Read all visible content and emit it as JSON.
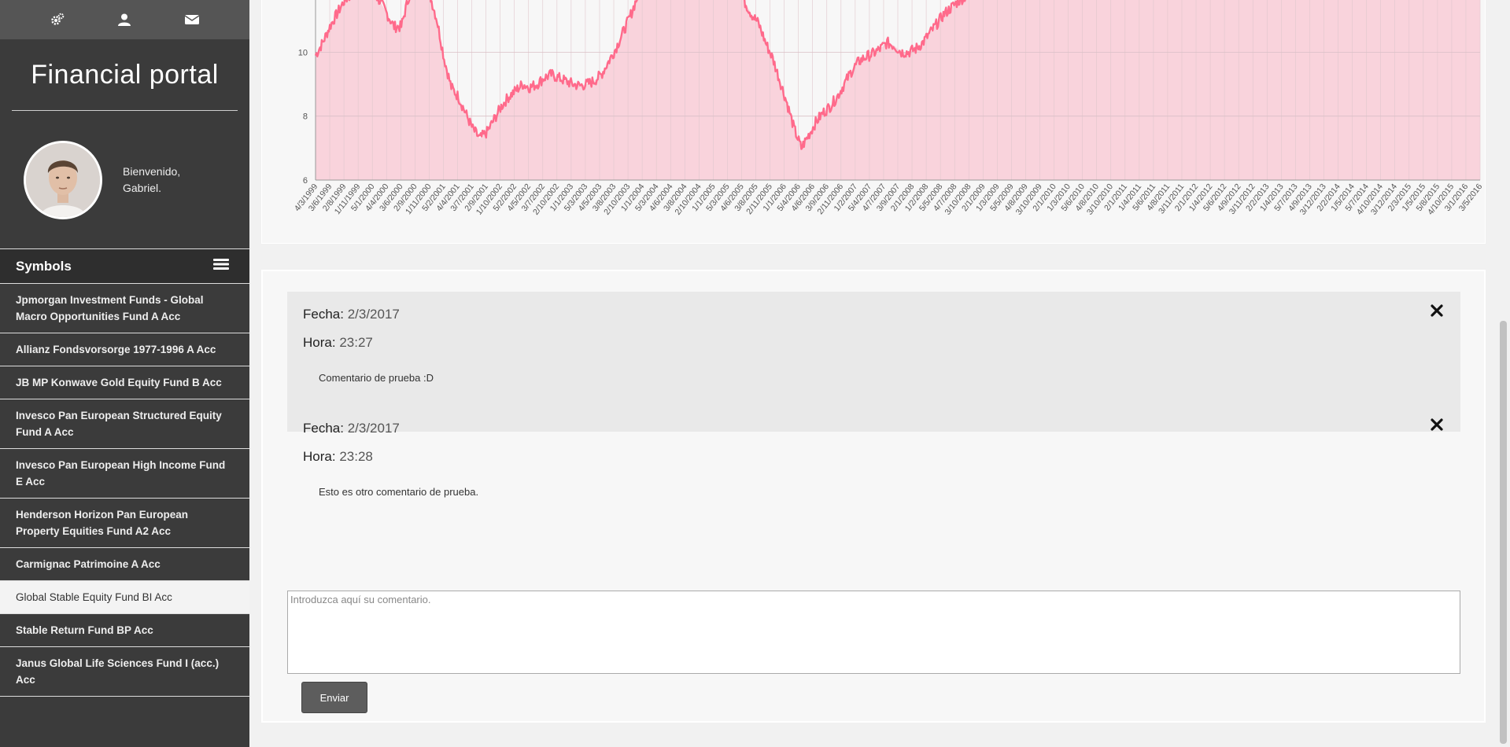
{
  "sidebar": {
    "top_icons": [
      "cogs-icon",
      "user-icon",
      "envelope-icon"
    ],
    "brand": "Financial portal",
    "greeting_line1": "Bienvenido,",
    "greeting_line2": "Gabriel.",
    "symbols_header": "Symbols",
    "symbols": [
      {
        "label": "Jpmorgan Investment Funds - Global Macro Opportunities Fund A Acc",
        "active": false
      },
      {
        "label": "Allianz Fondsvorsorge 1977-1996 A Acc",
        "active": false
      },
      {
        "label": "JB MP Konwave Gold Equity Fund B Acc",
        "active": false
      },
      {
        "label": "Invesco Pan European Structured Equity Fund A Acc",
        "active": false
      },
      {
        "label": "Invesco Pan European High Income Fund E Acc",
        "active": false
      },
      {
        "label": "Henderson Horizon Pan European Property Equities Fund A2 Acc",
        "active": false
      },
      {
        "label": "Carmignac Patrimoine A Acc",
        "active": false
      },
      {
        "label": "Global Stable Equity Fund BI Acc",
        "active": true
      },
      {
        "label": "Stable Return Fund BP Acc",
        "active": false
      },
      {
        "label": "Janus Global Life Sciences Fund I (acc.) Acc",
        "active": false
      }
    ]
  },
  "chart_data": {
    "type": "area",
    "title": "",
    "xlabel": "",
    "ylabel": "",
    "y_ticks": [
      6,
      8,
      10
    ],
    "ylim": [
      6,
      12.1
    ],
    "grid": true,
    "color": "#ff6a8b",
    "fill": "#f9d3dc",
    "x_tick_labels": [
      "4/3/1999",
      "3/6/1999",
      "2/8/1999",
      "1/11/1999",
      "5/1/2000",
      "4/4/2000",
      "3/6/2000",
      "2/9/2000",
      "1/11/2000",
      "5/2/2001",
      "4/4/2001",
      "3/7/2001",
      "2/9/2001",
      "1/10/2002",
      "5/2/2002",
      "4/5/2002",
      "3/7/2002",
      "2/10/2002",
      "1/1/2003",
      "5/3/2003",
      "4/5/2003",
      "3/8/2003",
      "2/10/2003",
      "1/1/2004",
      "5/3/2004",
      "4/6/2004",
      "3/8/2004",
      "2/10/2004",
      "1/1/2005",
      "5/3/2005",
      "4/6/2005",
      "3/8/2005",
      "2/11/2005",
      "1/1/2006",
      "5/4/2006",
      "4/6/2006",
      "3/9/2006",
      "2/11/2006",
      "1/2/2007",
      "5/4/2007",
      "4/7/2007",
      "3/9/2007",
      "2/1/2008",
      "1/2/2008",
      "5/5/2008",
      "4/7/2008",
      "3/10/2008",
      "2/1/2009",
      "1/3/2009",
      "5/5/2009",
      "4/8/2009",
      "3/10/2009",
      "2/1/2010",
      "1/3/2010",
      "5/6/2010",
      "4/8/2010",
      "3/10/2010",
      "2/1/2011",
      "1/4/2011",
      "5/6/2011",
      "4/8/2011",
      "3/11/2011",
      "2/1/2012",
      "1/4/2012",
      "5/6/2012",
      "4/9/2012",
      "3/11/2012",
      "2/2/2013",
      "1/4/2013",
      "5/7/2013",
      "4/9/2013",
      "3/12/2013",
      "2/2/2014",
      "1/5/2014",
      "5/7/2014",
      "4/10/2014",
      "3/12/2014",
      "2/3/2015",
      "1/5/2015",
      "5/8/2015",
      "4/10/2015",
      "3/1/2016",
      "3/5/2016"
    ],
    "series": [
      {
        "values": [
          9.9,
          10.3,
          10.8,
          11.2,
          11.6,
          11.8,
          11.9,
          11.95,
          11.9,
          11.6,
          11.2,
          10.8,
          10.8,
          11.7,
          12.05,
          12.1,
          11.8,
          11.0,
          9.8,
          8.9,
          8.6,
          8.1,
          7.6,
          7.3,
          7.5,
          7.9,
          8.3,
          8.6,
          8.8,
          9.0,
          8.9,
          9.0,
          9.2,
          9.3,
          9.2,
          9.1,
          9.0,
          8.95,
          9.0,
          9.1,
          9.3,
          9.7,
          10.1,
          10.6,
          11.1,
          11.7,
          12.1,
          12.1,
          12.1,
          12.1,
          12.1,
          12.1,
          12.1,
          12.1,
          12.1,
          12.1,
          12.1,
          12.1,
          12.1,
          12.1,
          11.6,
          11.2,
          10.9,
          10.3,
          9.8,
          9.1,
          8.4,
          7.6,
          7.0,
          7.4,
          7.8,
          8.1,
          8.3,
          8.6,
          9.0,
          9.4,
          9.7,
          9.85,
          9.95,
          10.1,
          10.3,
          10.2,
          10.0,
          10.0,
          10.1,
          10.3,
          10.6,
          10.9,
          11.2,
          11.4,
          11.6,
          11.75,
          11.85,
          12.1,
          12.1,
          12.1,
          12.1,
          12.1,
          12.1,
          12.1,
          12.1,
          12.1,
          12.1,
          12.1,
          12.1,
          12.1,
          12.1,
          12.1,
          12.1,
          12.1,
          12.1,
          12.1,
          12.1,
          12.1,
          12.1,
          12.1,
          12.1,
          12.1,
          12.1,
          12.1,
          12.1,
          12.1,
          12.1,
          12.1,
          12.1,
          12.1,
          12.1,
          12.1,
          12.1,
          12.1,
          12.1,
          12.1,
          12.1,
          12.1,
          12.1,
          12.1,
          12.1,
          12.1,
          12.1,
          12.1,
          12.1,
          12.1,
          12.1,
          12.1,
          12.1,
          12.1,
          12.1,
          12.1,
          12.1,
          12.1,
          12.1,
          12.1,
          12.1,
          12.1,
          12.1,
          12.1,
          12.1,
          12.1,
          12.1,
          12.1,
          12.1,
          12.1,
          12.1,
          12.1
        ]
      }
    ]
  },
  "comments": [
    {
      "fecha_label": "Fecha",
      "fecha": "2/3/2017",
      "hora_label": "Hora",
      "hora": "23:27",
      "text": "Comentario de prueba :D",
      "shaded": true
    },
    {
      "fecha_label": "Fecha",
      "fecha": "2/3/2017",
      "hora_label": "Hora",
      "hora": "23:28",
      "text": "Esto es otro comentario de prueba.",
      "shaded": false
    }
  ],
  "comment_form": {
    "placeholder": "Introduzca aquí su comentario.",
    "submit_label": "Enviar"
  }
}
